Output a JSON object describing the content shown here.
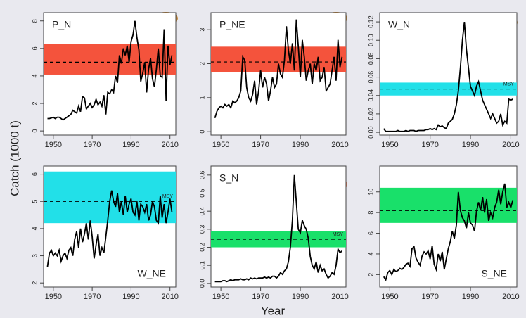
{
  "ylabel": "Catch (1000 t)",
  "xlabel": "Year",
  "chart_data": [
    {
      "type": "line",
      "title": "P_N",
      "title_corner": "top-left",
      "color": "#000000",
      "band_color": "#f4533c",
      "band": [
        4.1,
        6.3
      ],
      "msy": 5.0,
      "xlim": [
        1945,
        2013
      ],
      "xticks": [
        1950,
        1970,
        1990,
        2010
      ],
      "ylim": [
        -0.3,
        8.6
      ],
      "yticks": [
        0,
        2,
        4,
        6,
        8
      ],
      "x": [
        1947,
        1948,
        1949,
        1950,
        1951,
        1952,
        1953,
        1954,
        1955,
        1956,
        1957,
        1958,
        1959,
        1960,
        1961,
        1962,
        1963,
        1964,
        1965,
        1966,
        1967,
        1968,
        1969,
        1970,
        1971,
        1972,
        1973,
        1974,
        1975,
        1976,
        1977,
        1978,
        1979,
        1980,
        1981,
        1982,
        1983,
        1984,
        1985,
        1986,
        1987,
        1988,
        1989,
        1990,
        1991,
        1992,
        1993,
        1994,
        1995,
        1996,
        1997,
        1998,
        1999,
        2000,
        2001,
        2002,
        2003,
        2004,
        2005,
        2006,
        2007,
        2008,
        2009,
        2010,
        2011
      ],
      "values": [
        0.9,
        0.9,
        0.95,
        1.0,
        0.9,
        1.0,
        1.0,
        0.9,
        0.8,
        0.9,
        1.0,
        1.1,
        1.2,
        1.5,
        1.4,
        1.3,
        1.8,
        1.4,
        2.5,
        2.4,
        1.6,
        1.8,
        2.0,
        1.7,
        1.9,
        2.3,
        1.9,
        2.1,
        1.8,
        2.6,
        1.2,
        2.8,
        2.7,
        3.0,
        2.8,
        4.0,
        3.5,
        5.5,
        4.9,
        6.0,
        5.5,
        6.2,
        5.0,
        6.5,
        7.0,
        8.0,
        6.8,
        5.9,
        3.6,
        4.2,
        5.0,
        2.8,
        4.5,
        5.3,
        3.8,
        3.2,
        4.5,
        6.0,
        4.0,
        3.9,
        7.4,
        2.2,
        6.2,
        4.8,
        5.5
      ]
    },
    {
      "type": "line",
      "title": "P_NE",
      "title_corner": "top-left",
      "color": "#000000",
      "band_color": "#f4533c",
      "band": [
        1.75,
        2.5
      ],
      "msy": 2.05,
      "xlim": [
        1945,
        2013
      ],
      "xticks": [
        1950,
        1970,
        1990,
        2010
      ],
      "ylim": [
        -0.1,
        3.5
      ],
      "yticks": [
        0,
        1,
        2,
        3
      ],
      "x": [
        1947,
        1948,
        1949,
        1950,
        1951,
        1952,
        1953,
        1954,
        1955,
        1956,
        1957,
        1958,
        1959,
        1960,
        1961,
        1962,
        1963,
        1964,
        1965,
        1966,
        1967,
        1968,
        1969,
        1970,
        1971,
        1972,
        1973,
        1974,
        1975,
        1976,
        1977,
        1978,
        1979,
        1980,
        1981,
        1982,
        1983,
        1984,
        1985,
        1986,
        1987,
        1988,
        1989,
        1990,
        1991,
        1992,
        1993,
        1994,
        1995,
        1996,
        1997,
        1998,
        1999,
        2000,
        2001,
        2002,
        2003,
        2004,
        2005,
        2006,
        2007,
        2008,
        2009,
        2010,
        2011
      ],
      "values": [
        0.4,
        0.6,
        0.7,
        0.75,
        0.7,
        0.8,
        0.75,
        0.8,
        0.7,
        0.9,
        0.85,
        0.9,
        1.0,
        1.2,
        2.2,
        2.1,
        1.3,
        1.0,
        0.9,
        1.1,
        1.5,
        0.8,
        1.2,
        1.8,
        1.3,
        1.6,
        1.4,
        0.9,
        1.2,
        1.6,
        1.3,
        1.4,
        2.0,
        1.7,
        1.6,
        2.1,
        3.1,
        2.4,
        2.0,
        2.6,
        1.8,
        3.3,
        2.5,
        1.6,
        2.7,
        2.2,
        1.5,
        1.8,
        2.0,
        1.4,
        2.0,
        1.8,
        2.2,
        1.5,
        1.6,
        1.9,
        1.2,
        1.3,
        1.4,
        1.8,
        2.2,
        1.5,
        2.7,
        1.9,
        2.2
      ]
    },
    {
      "type": "line",
      "title": "W_N",
      "title_corner": "top-left",
      "annotation": "MSY",
      "color": "#000000",
      "band_color": "#22e0e8",
      "band": [
        0.04,
        0.054
      ],
      "msy": 0.047,
      "xlim": [
        1945,
        2013
      ],
      "xticks": [
        1950,
        1970,
        1990,
        2010
      ],
      "ylim": [
        -0.003,
        0.13
      ],
      "yticks": [
        {
          "value": 0,
          "label": "0.00"
        },
        {
          "value": 0.02,
          "label": "0.02"
        },
        {
          "value": 0.04,
          "label": "0.04"
        },
        {
          "value": 0.06,
          "label": "0.06"
        },
        {
          "value": 0.08,
          "label": "0.08"
        },
        {
          "value": 0.1,
          "label": "0.10"
        },
        {
          "value": 0.12,
          "label": "0.12"
        }
      ],
      "x": [
        1947,
        1948,
        1949,
        1950,
        1951,
        1952,
        1953,
        1954,
        1955,
        1956,
        1957,
        1958,
        1959,
        1960,
        1961,
        1962,
        1963,
        1964,
        1965,
        1966,
        1967,
        1968,
        1969,
        1970,
        1971,
        1972,
        1973,
        1974,
        1975,
        1976,
        1977,
        1978,
        1979,
        1980,
        1981,
        1982,
        1983,
        1984,
        1985,
        1986,
        1987,
        1988,
        1989,
        1990,
        1991,
        1992,
        1993,
        1994,
        1995,
        1996,
        1997,
        1998,
        1999,
        2000,
        2001,
        2002,
        2003,
        2004,
        2005,
        2006,
        2007,
        2008,
        2009,
        2010,
        2011
      ],
      "values": [
        0.004,
        0.001,
        0.001,
        0.001,
        0.001,
        0.001,
        0.001,
        0.002,
        0.001,
        0.001,
        0.001,
        0.002,
        0.001,
        0.002,
        0.002,
        0.002,
        0.001,
        0.002,
        0.002,
        0.002,
        0.002,
        0.003,
        0.003,
        0.004,
        0.003,
        0.004,
        0.003,
        0.008,
        0.006,
        0.007,
        0.005,
        0.004,
        0.01,
        0.012,
        0.014,
        0.02,
        0.03,
        0.045,
        0.07,
        0.1,
        0.12,
        0.09,
        0.07,
        0.05,
        0.045,
        0.04,
        0.05,
        0.055,
        0.045,
        0.035,
        0.03,
        0.025,
        0.02,
        0.015,
        0.02,
        0.015,
        0.01,
        0.012,
        0.02,
        0.008,
        0.012,
        0.01,
        0.036,
        0.035,
        0.036
      ]
    },
    {
      "type": "line",
      "title": "W_NE",
      "title_corner": "bottom-right",
      "annotation": "MSY",
      "color": "#000000",
      "band_color": "#22e0e8",
      "band": [
        4.2,
        6.1
      ],
      "msy": 5.0,
      "xlim": [
        1945,
        2013
      ],
      "xticks": [
        1950,
        1970,
        1990,
        2010
      ],
      "ylim": [
        1.85,
        6.3
      ],
      "yticks": [
        2,
        3,
        4,
        5,
        6
      ],
      "x": [
        1947,
        1948,
        1949,
        1950,
        1951,
        1952,
        1953,
        1954,
        1955,
        1956,
        1957,
        1958,
        1959,
        1960,
        1961,
        1962,
        1963,
        1964,
        1965,
        1966,
        1967,
        1968,
        1969,
        1970,
        1971,
        1972,
        1973,
        1974,
        1975,
        1976,
        1977,
        1978,
        1979,
        1980,
        1981,
        1982,
        1983,
        1984,
        1985,
        1986,
        1987,
        1988,
        1989,
        1990,
        1991,
        1992,
        1993,
        1994,
        1995,
        1996,
        1997,
        1998,
        1999,
        2000,
        2001,
        2002,
        2003,
        2004,
        2005,
        2006,
        2007,
        2008,
        2009,
        2010,
        2011
      ],
      "values": [
        2.6,
        3.1,
        3.2,
        3.0,
        3.1,
        3.0,
        3.2,
        2.8,
        3.0,
        3.1,
        2.9,
        3.2,
        3.3,
        3.0,
        3.6,
        3.9,
        3.3,
        4.0,
        3.5,
        3.8,
        4.2,
        3.6,
        4.3,
        3.7,
        2.9,
        3.4,
        3.8,
        3.0,
        3.3,
        3.1,
        3.7,
        4.3,
        5.0,
        5.4,
        5.0,
        4.8,
        5.3,
        4.6,
        5.0,
        4.5,
        5.2,
        4.6,
        4.9,
        5.1,
        4.6,
        4.5,
        5.0,
        4.3,
        4.9,
        4.8,
        4.6,
        4.9,
        4.3,
        4.5,
        5.0,
        4.8,
        4.3,
        4.2,
        5.2,
        4.4,
        4.9,
        4.2,
        4.6,
        5.1,
        4.6
      ]
    },
    {
      "type": "line",
      "title": "S_N",
      "title_corner": "top-left",
      "annotation": "MSY",
      "color": "#000000",
      "band_color": "#19e06a",
      "band": [
        0.2,
        0.29
      ],
      "msy": 0.245,
      "xlim": [
        1945,
        2013
      ],
      "xticks": [
        1950,
        1970,
        1990,
        2010
      ],
      "ylim": [
        -0.02,
        0.65
      ],
      "yticks": [
        {
          "value": 0,
          "label": "0.0"
        },
        0.1,
        0.2,
        0.3,
        0.4,
        0.5,
        0.6
      ],
      "x": [
        1947,
        1948,
        1949,
        1950,
        1951,
        1952,
        1953,
        1954,
        1955,
        1956,
        1957,
        1958,
        1959,
        1960,
        1961,
        1962,
        1963,
        1964,
        1965,
        1966,
        1967,
        1968,
        1969,
        1970,
        1971,
        1972,
        1973,
        1974,
        1975,
        1976,
        1977,
        1978,
        1979,
        1980,
        1981,
        1982,
        1983,
        1984,
        1985,
        1986,
        1987,
        1988,
        1989,
        1990,
        1991,
        1992,
        1993,
        1994,
        1995,
        1996,
        1997,
        1998,
        1999,
        2000,
        2001,
        2002,
        2003,
        2004,
        2005,
        2006,
        2007,
        2008,
        2009,
        2010,
        2011
      ],
      "values": [
        0.01,
        0.01,
        0.01,
        0.01,
        0.015,
        0.015,
        0.01,
        0.015,
        0.02,
        0.015,
        0.02,
        0.02,
        0.02,
        0.025,
        0.02,
        0.02,
        0.025,
        0.02,
        0.03,
        0.025,
        0.03,
        0.025,
        0.03,
        0.03,
        0.03,
        0.035,
        0.03,
        0.035,
        0.03,
        0.04,
        0.04,
        0.03,
        0.04,
        0.06,
        0.05,
        0.07,
        0.08,
        0.12,
        0.2,
        0.35,
        0.6,
        0.45,
        0.3,
        0.28,
        0.35,
        0.32,
        0.3,
        0.25,
        0.15,
        0.1,
        0.08,
        0.12,
        0.06,
        0.1,
        0.07,
        0.08,
        0.05,
        0.03,
        0.04,
        0.06,
        0.05,
        0.1,
        0.19,
        0.17,
        0.18
      ]
    },
    {
      "type": "line",
      "title": "S_NE",
      "title_corner": "bottom-right",
      "color": "#000000",
      "band_color": "#19e06a",
      "band": [
        7.0,
        10.4
      ],
      "msy": 8.2,
      "xlim": [
        1945,
        2013
      ],
      "xticks": [
        1950,
        1970,
        1990,
        2010
      ],
      "ylim": [
        0.8,
        12.5
      ],
      "yticks": [
        2,
        4,
        6,
        8,
        10
      ],
      "x": [
        1947,
        1948,
        1949,
        1950,
        1951,
        1952,
        1953,
        1954,
        1955,
        1956,
        1957,
        1958,
        1959,
        1960,
        1961,
        1962,
        1963,
        1964,
        1965,
        1966,
        1967,
        1968,
        1969,
        1970,
        1971,
        1972,
        1973,
        1974,
        1975,
        1976,
        1977,
        1978,
        1979,
        1980,
        1981,
        1982,
        1983,
        1984,
        1985,
        1986,
        1987,
        1988,
        1989,
        1990,
        1991,
        1992,
        1993,
        1994,
        1995,
        1996,
        1997,
        1998,
        1999,
        2000,
        2001,
        2002,
        2003,
        2004,
        2005,
        2006,
        2007,
        2008,
        2009,
        2010,
        2011
      ],
      "values": [
        1.8,
        1.5,
        2.2,
        2.4,
        2.0,
        2.5,
        2.3,
        2.4,
        2.6,
        2.5,
        2.7,
        3.0,
        3.1,
        2.8,
        4.5,
        4.7,
        3.6,
        3.2,
        2.9,
        3.8,
        4.2,
        4.0,
        4.3,
        3.5,
        4.8,
        3.0,
        2.5,
        4.0,
        3.3,
        4.2,
        2.5,
        3.5,
        4.5,
        5.2,
        6.2,
        5.5,
        6.8,
        10.0,
        8.2,
        7.5,
        7.2,
        6.5,
        8.0,
        7.0,
        6.8,
        6.2,
        8.1,
        9.0,
        8.2,
        9.5,
        8.0,
        9.3,
        7.2,
        8.0,
        7.5,
        8.5,
        9.0,
        10.2,
        8.8,
        10.0,
        10.8,
        8.5,
        9.0,
        8.5,
        9.2
      ]
    }
  ]
}
